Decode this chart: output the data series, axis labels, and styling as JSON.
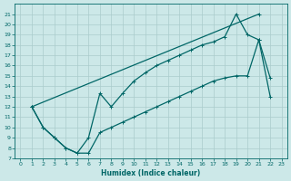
{
  "xlabel": "Humidex (Indice chaleur)",
  "bg_color": "#cce8e8",
  "line_color": "#006666",
  "grid_color": "#aacccc",
  "xlim": [
    -0.5,
    23.5
  ],
  "ylim": [
    7,
    22
  ],
  "yticks": [
    7,
    8,
    9,
    10,
    11,
    12,
    13,
    14,
    15,
    16,
    17,
    18,
    19,
    20,
    21
  ],
  "xticks": [
    0,
    1,
    2,
    3,
    4,
    5,
    6,
    7,
    8,
    9,
    10,
    11,
    12,
    13,
    14,
    15,
    16,
    17,
    18,
    19,
    20,
    21,
    22,
    23
  ],
  "line1_x": [
    1,
    21
  ],
  "line1_y": [
    12,
    21
  ],
  "line2_x": [
    1,
    2,
    3,
    4,
    5,
    6,
    7,
    8,
    9,
    10,
    11,
    12,
    13,
    14,
    15,
    16,
    17,
    18,
    19,
    20,
    21,
    22
  ],
  "line2_y": [
    12,
    10,
    9,
    8,
    7.5,
    9,
    13.3,
    12,
    13.3,
    14.5,
    15.3,
    16,
    16.5,
    17,
    17.5,
    18,
    18.3,
    18.8,
    21,
    19,
    18.5,
    14.8
  ],
  "line3_x": [
    1,
    2,
    3,
    4,
    5,
    6,
    7,
    8,
    9,
    10,
    11,
    12,
    13,
    14,
    15,
    16,
    17,
    18,
    19,
    20,
    21,
    22
  ],
  "line3_y": [
    12,
    10,
    9,
    8,
    7.5,
    7.5,
    9.5,
    10,
    10.5,
    11,
    11.5,
    12,
    12.5,
    13,
    13.5,
    14,
    14.5,
    14.8,
    15,
    15,
    18.5,
    13
  ],
  "markersize": 2.5,
  "linewidth": 0.9
}
